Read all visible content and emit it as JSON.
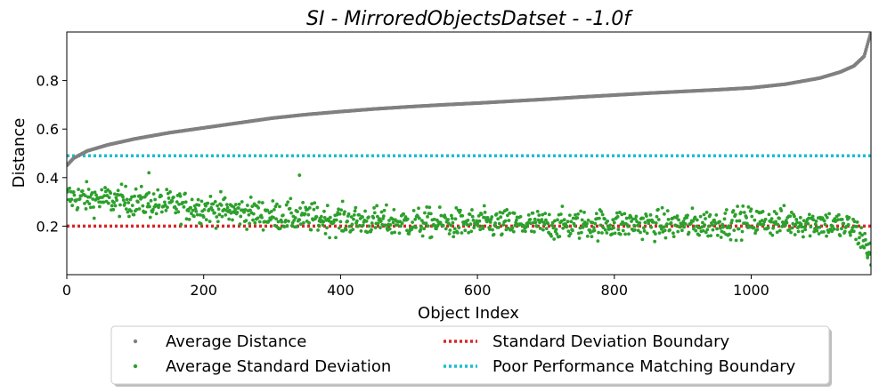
{
  "chart_data": {
    "type": "scatter",
    "title": "SI - MirroredObjectsDatset - -1.0f",
    "xlabel": "Object Index",
    "ylabel": "Distance",
    "xlim": [
      0,
      1175
    ],
    "ylim": [
      0,
      1.0
    ],
    "xticks": [
      0,
      200,
      400,
      600,
      800,
      1000
    ],
    "yticks": [
      0.2,
      0.4,
      0.6,
      0.8
    ],
    "n_points": 1175,
    "series": [
      {
        "name": "Average Distance",
        "kind": "points",
        "color": "#808080",
        "keypoints": [
          [
            0,
            0.45
          ],
          [
            10,
            0.48
          ],
          [
            30,
            0.51
          ],
          [
            60,
            0.535
          ],
          [
            100,
            0.56
          ],
          [
            150,
            0.585
          ],
          [
            200,
            0.605
          ],
          [
            250,
            0.625
          ],
          [
            300,
            0.645
          ],
          [
            350,
            0.66
          ],
          [
            400,
            0.672
          ],
          [
            450,
            0.683
          ],
          [
            500,
            0.692
          ],
          [
            550,
            0.7
          ],
          [
            600,
            0.707
          ],
          [
            650,
            0.715
          ],
          [
            700,
            0.723
          ],
          [
            750,
            0.732
          ],
          [
            800,
            0.74
          ],
          [
            850,
            0.748
          ],
          [
            900,
            0.755
          ],
          [
            950,
            0.762
          ],
          [
            1000,
            0.77
          ],
          [
            1050,
            0.785
          ],
          [
            1100,
            0.81
          ],
          [
            1130,
            0.835
          ],
          [
            1150,
            0.86
          ],
          [
            1165,
            0.9
          ],
          [
            1170,
            0.95
          ],
          [
            1175,
            1.0
          ]
        ]
      },
      {
        "name": "Average Standard Deviation",
        "kind": "points",
        "color": "#2ca02c",
        "trend": [
          [
            0,
            0.32
          ],
          [
            100,
            0.3
          ],
          [
            200,
            0.275
          ],
          [
            300,
            0.245
          ],
          [
            400,
            0.225
          ],
          [
            500,
            0.215
          ],
          [
            600,
            0.21
          ],
          [
            700,
            0.205
          ],
          [
            800,
            0.21
          ],
          [
            900,
            0.205
          ],
          [
            1000,
            0.22
          ],
          [
            1100,
            0.215
          ],
          [
            1150,
            0.19
          ],
          [
            1175,
            0.1
          ]
        ],
        "spread": 0.05,
        "outliers": [
          [
            120,
            0.42
          ],
          [
            340,
            0.41
          ],
          [
            1175,
            0.04
          ],
          [
            1170,
            0.07
          ]
        ]
      },
      {
        "name": "Standard Deviation Boundary",
        "kind": "hline",
        "value": 0.2,
        "color": "#d62728"
      },
      {
        "name": "Poor Performance Matching Boundary",
        "kind": "hline",
        "value": 0.49,
        "color": "#17becf"
      }
    ],
    "legend_position": "lower-center (below plot)"
  }
}
